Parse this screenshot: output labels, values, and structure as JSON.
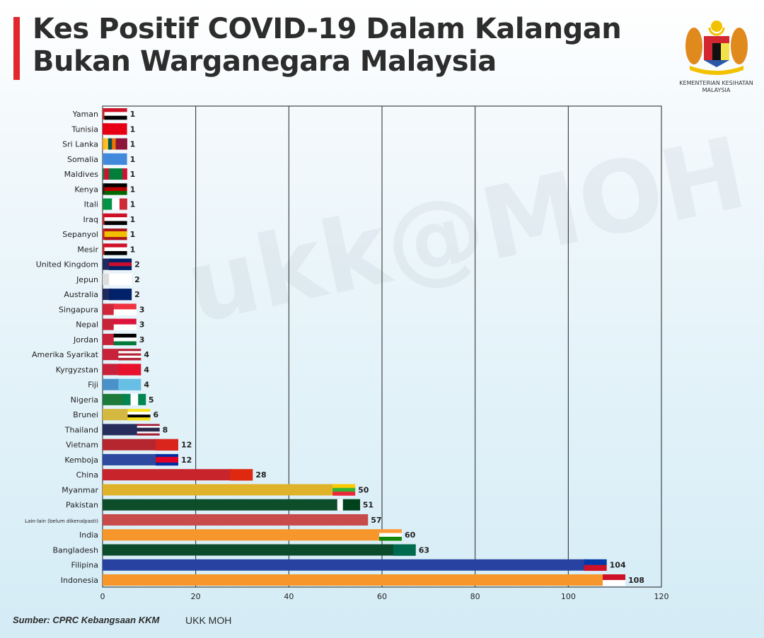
{
  "title_line1": "Kes Positif COVID-19 Dalam Kalangan",
  "title_line2": "Bukan Warganegara Malaysia",
  "logo_text_line1": "KEMENTERIAN KESIHATAN",
  "logo_text_line2": "MALAYSIA",
  "watermark": "ukk@MOH",
  "footer_source": "Sumber: CPRC Kebangsaan KKM",
  "footer_credit": "UKK MOH",
  "chart_data": {
    "type": "bar",
    "orientation": "horizontal",
    "title": "Kes Positif COVID-19 Dalam Kalangan Bukan Warganegara Malaysia",
    "xlim": [
      0,
      120
    ],
    "xticks": [
      0,
      20,
      40,
      60,
      80,
      100,
      120
    ],
    "grid": "vertical",
    "categories": [
      "Yaman",
      "Tunisia",
      "Sri Lanka",
      "Somalia",
      "Maldives",
      "Kenya",
      "Itali",
      "Iraq",
      "Sepanyol",
      "Mesir",
      "United Kingdom",
      "Jepun",
      "Australia",
      "Singapura",
      "Nepal",
      "Jordan",
      "Amerika Syarikat",
      "Kyrgyzstan",
      "Fiji",
      "Nigeria",
      "Brunei",
      "Thailand",
      "Vietnam",
      "Kemboja",
      "China",
      "Myanmar",
      "Pakistan",
      "Lain-lain (belum dikenalpasti)",
      "India",
      "Bangladesh",
      "Filipina",
      "Indonesia"
    ],
    "values": [
      1,
      1,
      1,
      1,
      1,
      1,
      1,
      1,
      1,
      1,
      2,
      2,
      2,
      3,
      3,
      3,
      4,
      4,
      4,
      5,
      6,
      8,
      12,
      12,
      28,
      50,
      51,
      57,
      60,
      63,
      104,
      108
    ],
    "bar_colors": [
      "#c8242b",
      "#e70013",
      "#f0b020",
      "#4a8fd0",
      "#1d7a3a",
      "#222222",
      "#1d8a3a",
      "#c8242b",
      "#c8242b",
      "#c8242b",
      "#1f2a5c",
      "#dddddd",
      "#1f2a5c",
      "#d0263a",
      "#c8213a",
      "#c8213a",
      "#c8213a",
      "#c8213a",
      "#4a90c9",
      "#1d7a3a",
      "#d4b840",
      "#262c5c",
      "#b5262e",
      "#2d4aa0",
      "#c8242b",
      "#e0b22a",
      "#0d4d2a",
      "#c84a4a",
      "#f7962a",
      "#0b4a2a",
      "#2742a0",
      "#f7962a"
    ],
    "flags": [
      {
        "dir": "h",
        "colors": [
          "#ce1126",
          "#ffffff",
          "#000000"
        ]
      },
      {
        "dir": "h",
        "colors": [
          "#e70013"
        ]
      },
      {
        "dir": "v",
        "colors": [
          "#ffbe29",
          "#00534e",
          "#eb7400",
          "#8d153a",
          "#8d153a",
          "#8d153a"
        ]
      },
      {
        "dir": "h",
        "colors": [
          "#4189dd"
        ]
      },
      {
        "dir": "v",
        "colors": [
          "#d21034",
          "#007e3a",
          "#007e3a",
          "#007e3a",
          "#d21034"
        ]
      },
      {
        "dir": "h",
        "colors": [
          "#000000",
          "#bb0000",
          "#006600"
        ]
      },
      {
        "dir": "v",
        "colors": [
          "#009246",
          "#ffffff",
          "#ce2b37"
        ]
      },
      {
        "dir": "h",
        "colors": [
          "#ce1126",
          "#ffffff",
          "#000000"
        ]
      },
      {
        "dir": "h",
        "colors": [
          "#aa151b",
          "#f1bf00",
          "#f1bf00",
          "#aa151b"
        ]
      },
      {
        "dir": "h",
        "colors": [
          "#ce1126",
          "#ffffff",
          "#000000"
        ]
      },
      {
        "dir": "h",
        "colors": [
          "#012169",
          "#c8102e",
          "#012169"
        ]
      },
      {
        "dir": "h",
        "colors": [
          "#ffffff"
        ]
      },
      {
        "dir": "h",
        "colors": [
          "#012169"
        ]
      },
      {
        "dir": "h",
        "colors": [
          "#ef3340",
          "#ffffff"
        ]
      },
      {
        "dir": "h",
        "colors": [
          "#dc143c",
          "#ffffff"
        ]
      },
      {
        "dir": "h",
        "colors": [
          "#000000",
          "#ffffff",
          "#007a3d"
        ]
      },
      {
        "dir": "h",
        "colors": [
          "#b22234",
          "#ffffff",
          "#b22234",
          "#ffffff",
          "#b22234"
        ]
      },
      {
        "dir": "h",
        "colors": [
          "#e8112d"
        ]
      },
      {
        "dir": "h",
        "colors": [
          "#68bfe5"
        ]
      },
      {
        "dir": "v",
        "colors": [
          "#008751",
          "#ffffff",
          "#008751"
        ]
      },
      {
        "dir": "h",
        "colors": [
          "#f7e017",
          "#ffffff",
          "#000000",
          "#f7e017"
        ]
      },
      {
        "dir": "h",
        "colors": [
          "#a51931",
          "#f4f5f8",
          "#2d2a4a",
          "#2d2a4a",
          "#f4f5f8",
          "#a51931"
        ]
      },
      {
        "dir": "h",
        "colors": [
          "#da251d"
        ]
      },
      {
        "dir": "h",
        "colors": [
          "#032ea1",
          "#e00025",
          "#e00025",
          "#032ea1"
        ]
      },
      {
        "dir": "h",
        "colors": [
          "#de2910"
        ]
      },
      {
        "dir": "h",
        "colors": [
          "#fecb00",
          "#34b233",
          "#ea2839"
        ]
      },
      {
        "dir": "v",
        "colors": [
          "#ffffff",
          "#01411c",
          "#01411c",
          "#01411c"
        ]
      },
      null,
      {
        "dir": "h",
        "colors": [
          "#ff9933",
          "#ffffff",
          "#138808"
        ]
      },
      {
        "dir": "h",
        "colors": [
          "#006a4e"
        ]
      },
      {
        "dir": "h",
        "colors": [
          "#0038a8",
          "#ce1126"
        ]
      },
      {
        "dir": "h",
        "colors": [
          "#ce1126",
          "#ffffff"
        ]
      }
    ]
  }
}
